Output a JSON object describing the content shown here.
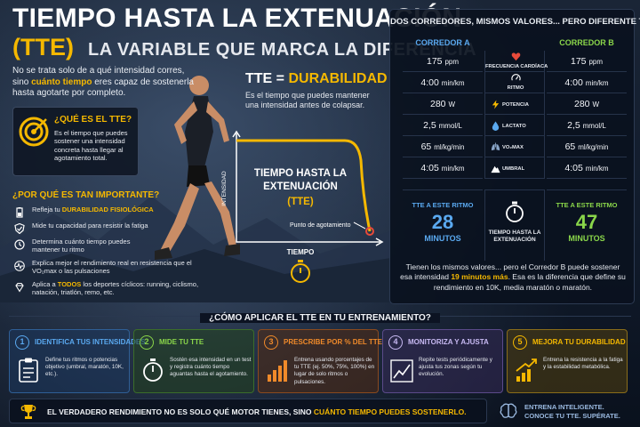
{
  "header": {
    "title_line1": "TIEMPO HASTA LA EXTENUACIÓN",
    "title_abbr": "(TTE)",
    "subtitle": "LA VARIABLE QUE MARCA LA DIFERENCIA"
  },
  "intro": {
    "pre": "No se trata solo de a qué intensidad corres, sino ",
    "highlight": "cuánto tiempo",
    "post": " eres capaz de sostenerla hasta agotarte por completo."
  },
  "what_is": {
    "heading": "¿QUÉ ES EL TTE?",
    "body": "Es el tiempo que puedes sostener una intensidad concreta hasta llegar al agotamiento total.",
    "icon": "target-icon"
  },
  "why": {
    "heading": "¿POR QUÉ ES TAN IMPORTANTE?",
    "items": [
      {
        "pre": "Refleja tu ",
        "bold": "DURABILIDAD FISIOLÓGICA",
        "post": "",
        "icon": "battery-icon"
      },
      {
        "pre": "Mide tu capacidad para resistir la fatiga",
        "bold": "",
        "post": "",
        "icon": "shield-icon"
      },
      {
        "pre": "Determina cuánto tiempo puedes mantener tu ritmo",
        "bold": "",
        "post": "",
        "icon": "clock-icon"
      },
      {
        "pre": "Explica mejor el rendimiento real en resistencia que el VO₂max o las pulsaciones",
        "bold": "",
        "post": "",
        "icon": "pulse-icon"
      },
      {
        "pre": "Aplica a ",
        "bold": "TODOS",
        "post": " los deportes cíclicos: running, ciclismo, natación, triatlón, remo, etc.",
        "icon": "diamond-icon"
      }
    ]
  },
  "tte_chart": {
    "heading_pre": "TTE = ",
    "heading_highlight": "DURABILIDAD",
    "description": "Es el tiempo que puedes mantener una intensidad antes de colapsar.",
    "center_line1": "TIEMPO HASTA LA",
    "center_line2": "EXTENUACIÓN",
    "center_abbr": "(TTE)",
    "y_label": "INTENSIDAD",
    "x_label": "TIEMPO",
    "exhaustion_label": "Punto de agotamiento",
    "colors": {
      "curve": "#f5b800",
      "end_point": "#e84a3a"
    }
  },
  "comparison": {
    "title": "DOS CORREDORES, MISMOS VALORES... PERO DIFERENTE TTE",
    "runner_a": {
      "name": "CORREDOR A",
      "values": [
        {
          "num": "175",
          "unit": "ppm"
        },
        {
          "num": "4:00",
          "unit": "min/km"
        },
        {
          "num": "280",
          "unit": "W"
        },
        {
          "num": "2,5",
          "unit": "mmol/L"
        },
        {
          "num": "65",
          "unit": "ml/kg/min"
        },
        {
          "num": "4:05",
          "unit": "min/km"
        }
      ],
      "tte_label": "TTE A ESTE RITMO",
      "tte_value": "28",
      "tte_unit": "MINUTOS",
      "color": "#5aa9f0"
    },
    "runner_b": {
      "name": "CORREDOR B",
      "values": [
        {
          "num": "175",
          "unit": "ppm"
        },
        {
          "num": "4:00",
          "unit": "min/km"
        },
        {
          "num": "280",
          "unit": "W"
        },
        {
          "num": "2,5",
          "unit": "mmol/L"
        },
        {
          "num": "65",
          "unit": "ml/kg/min"
        },
        {
          "num": "4:05",
          "unit": "min/km"
        }
      ],
      "tte_label": "TTE A ESTE RITMO",
      "tte_value": "47",
      "tte_unit": "MINUTOS",
      "color": "#8ad64a"
    },
    "metrics": [
      {
        "label": "FRECUENCIA CARDÍACA",
        "icon": "heart-icon"
      },
      {
        "label": "RITMO",
        "icon": "gauge-icon"
      },
      {
        "label": "POTENCIA",
        "icon": "bolt-icon"
      },
      {
        "label": "LACTATO",
        "icon": "drop-icon"
      },
      {
        "label": "VO₂MAX",
        "icon": "lungs-icon"
      },
      {
        "label": "UMBRAL",
        "icon": "mountain-icon"
      }
    ],
    "center_label_line1": "TIEMPO HASTA LA",
    "center_label_line2": "EXTENUACIÓN",
    "summary_pre": "Tienen los mismos valores... pero el Corredor B puede sostener esa intensidad ",
    "summary_highlight": "19 minutos más",
    "summary_post": ". Esa es la diferencia que define su rendimiento en 10K, media maratón o maratón."
  },
  "how": {
    "heading": "¿CÓMO APLICAR EL TTE EN TU ENTRENAMIENTO?",
    "steps": [
      {
        "num": "1",
        "title": "IDENTIFICA TUS INTENSIDADES",
        "body": "Define tus ritmos o potencias objetivo (umbral, maratón, 10K, etc.).",
        "icon": "clipboard-icon"
      },
      {
        "num": "2",
        "title": "MIDE TU TTE",
        "body": "Sostén esa intensidad en un test y registra cuánto tiempo aguantas hasta el agotamiento.",
        "icon": "stopwatch-icon"
      },
      {
        "num": "3",
        "title": "PRESCRIBE POR % DEL TTE",
        "body": "Entrena usando porcentajes de tu TTE (ej. 50%, 75%, 100%) en lugar de solo ritmos o pulsaciones.",
        "icon": "bars-icon"
      },
      {
        "num": "4",
        "title": "MONITORIZA Y AJUSTA",
        "body": "Repite tests periódicamente y ajusta tus zonas según tu evolución.",
        "icon": "trend-icon"
      },
      {
        "num": "5",
        "title": "MEJORA TU DURABILIDAD",
        "body": "Entrena la resistencia a la fatiga y la estabilidad metabólica.",
        "icon": "growth-icon"
      }
    ]
  },
  "footer": {
    "pre": "EL VERDADERO RENDIMIENTO NO ES SOLO QUÉ MOTOR TIENES, SINO ",
    "highlight": "CUÁNTO TIEMPO PUEDES SOSTENERLO.",
    "side_line1": "ENTRENA INTELIGENTE.",
    "side_line2": "CONOCE TU TTE. SUPÉRATE.",
    "trophy_icon": "trophy-icon",
    "brain_icon": "brain-icon"
  }
}
